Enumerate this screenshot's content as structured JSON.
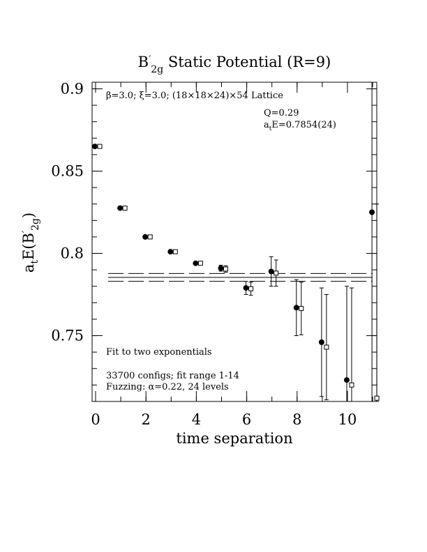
{
  "chart_data": {
    "type": "scatter",
    "title": {
      "pre": "B",
      "prime": "′",
      "sub": "2g",
      "post": " Static Potential (R=9)"
    },
    "xlabel": "time separation",
    "ylabel": {
      "pre": "a",
      "sub1": "t",
      "mid": "E(B",
      "prime": "′",
      "sub2": "2g",
      "post": ")"
    },
    "xlim": [
      0,
      11
    ],
    "ylim": [
      0.71,
      0.904
    ],
    "x_ticks": [
      0,
      2,
      4,
      6,
      8,
      10
    ],
    "y_ticks": [
      0.75,
      0.8,
      0.85,
      0.9
    ],
    "y_tick_labels": [
      "0.75",
      "0.8",
      "0.85",
      "0.9"
    ],
    "annotations": {
      "lattice": "β=3.0; ξ=3.0; (18×18×24)×54 Lattice",
      "q": "Q=0.29",
      "ate": {
        "pre": "a",
        "sub": "t",
        "post": "E=0.7854(24)"
      },
      "fit": "Fit to two exponentials",
      "configs": "33700 configs; fit range 1-14",
      "fuzzing": "Fuzzing: α=0.22, 24 levels"
    },
    "fit": {
      "value": 0.7854,
      "error": 0.0024
    },
    "series": [
      {
        "marker": "filled-circle",
        "points": [
          {
            "x": 0,
            "y": 0.865,
            "err": 0.0005
          },
          {
            "x": 1,
            "y": 0.8275,
            "err": 0.0005
          },
          {
            "x": 2,
            "y": 0.81,
            "err": 0.0007
          },
          {
            "x": 3,
            "y": 0.801,
            "err": 0.001
          },
          {
            "x": 4,
            "y": 0.794,
            "err": 0.0012
          },
          {
            "x": 5,
            "y": 0.791,
            "err": 0.0018
          },
          {
            "x": 6,
            "y": 0.779,
            "err": 0.004
          },
          {
            "x": 7,
            "y": 0.789,
            "err": 0.009
          },
          {
            "x": 8,
            "y": 0.767,
            "err": 0.017
          },
          {
            "x": 9,
            "y": 0.746,
            "err": 0.033
          },
          {
            "x": 10,
            "y": 0.723,
            "err": 0.057
          },
          {
            "x": 11,
            "y": 0.825,
            "err": 0.115
          }
        ]
      },
      {
        "marker": "open-square",
        "points": [
          {
            "x": 0,
            "y": 0.865,
            "err": 0.0004
          },
          {
            "x": 1,
            "y": 0.8275,
            "err": 0.0005
          },
          {
            "x": 2,
            "y": 0.81,
            "err": 0.0006
          },
          {
            "x": 3,
            "y": 0.801,
            "err": 0.0009
          },
          {
            "x": 4,
            "y": 0.794,
            "err": 0.0012
          },
          {
            "x": 5,
            "y": 0.7905,
            "err": 0.002
          },
          {
            "x": 6,
            "y": 0.7785,
            "err": 0.004
          },
          {
            "x": 7,
            "y": 0.788,
            "err": 0.008
          },
          {
            "x": 8,
            "y": 0.7665,
            "err": 0.016
          },
          {
            "x": 9,
            "y": 0.743,
            "err": 0.032
          },
          {
            "x": 10,
            "y": 0.72,
            "err": 0.059
          },
          {
            "x": 11,
            "y": 0.712,
            "err": 0.118
          }
        ]
      }
    ]
  }
}
